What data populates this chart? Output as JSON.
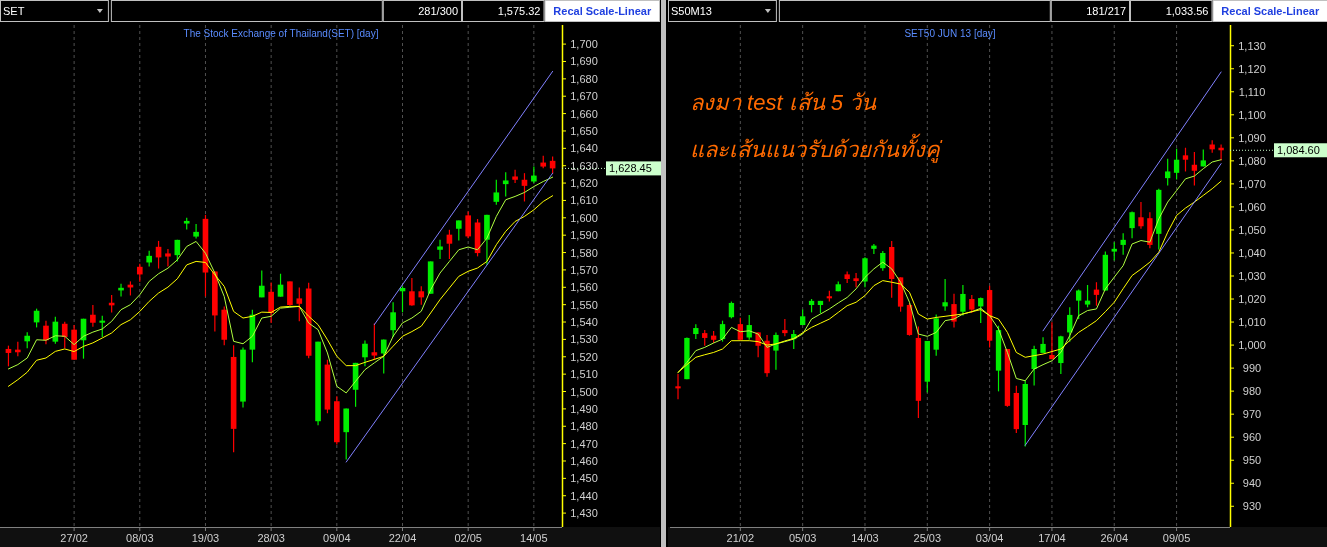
{
  "chart_data": [
    {
      "type": "candlestick",
      "title": "The Stock Exchange of Thailand(SET) [day]",
      "grid": "x",
      "categories": [
        null,
        null,
        null,
        null,
        null,
        null,
        null,
        "27/02",
        null,
        null,
        null,
        null,
        null,
        null,
        "08/03",
        null,
        null,
        null,
        null,
        null,
        null,
        "19/03",
        null,
        null,
        null,
        null,
        null,
        null,
        "28/03",
        null,
        null,
        null,
        null,
        null,
        null,
        "09/04",
        null,
        null,
        null,
        null,
        null,
        null,
        "22/04",
        null,
        null,
        null,
        null,
        null,
        null,
        "02/05",
        null,
        null,
        null,
        null,
        null,
        null,
        "14/05",
        null,
        null
      ],
      "ohlc": [
        [
          1524.5,
          1526.4,
          1514.5,
          1522.2
        ],
        [
          1524.1,
          1528.7,
          1520.3,
          1522.6
        ],
        [
          1528.9,
          1534.1,
          1524.9,
          1532.1
        ],
        [
          1539.8,
          1547.7,
          1536.9,
          1546.5
        ],
        [
          1537.9,
          1540.8,
          1527.2,
          1529.5
        ],
        [
          1528.7,
          1543.1,
          1527.5,
          1540.2
        ],
        [
          1539.0,
          1540.2,
          1524.9,
          1531.4
        ],
        [
          1535.6,
          1538.3,
          1518.3,
          1518.3
        ],
        [
          1529.5,
          1541.9,
          1518.9,
          1541.9
        ],
        [
          1544.2,
          1549.8,
          1537.3,
          1539.6
        ],
        [
          1539.6,
          1543.6,
          1531.4,
          1540.8
        ],
        [
          1551.1,
          1555.5,
          1545.5,
          1549.6
        ],
        [
          1558.2,
          1562.0,
          1554.7,
          1559.7
        ],
        [
          1561.5,
          1563.4,
          1555.3,
          1559.9
        ],
        [
          1571.8,
          1573.5,
          1563.2,
          1567.4
        ],
        [
          1574.3,
          1581.0,
          1572.0,
          1578.1
        ],
        [
          1583.3,
          1586.7,
          1570.8,
          1577.2
        ],
        [
          1579.5,
          1582.1,
          1572.0,
          1577.7
        ],
        [
          1578.5,
          1587.3,
          1574.9,
          1587.3
        ],
        [
          1596.7,
          1600.0,
          1593.3,
          1598.2
        ],
        [
          1589.2,
          1596.5,
          1588.1,
          1591.9
        ],
        [
          1599.4,
          1601.7,
          1554.7,
          1568.5
        ],
        [
          1569.1,
          1569.1,
          1534.6,
          1543.8
        ],
        [
          1547.1,
          1549.0,
          1526.6,
          1529.8
        ],
        [
          1519.9,
          1526.6,
          1465.1,
          1478.5
        ],
        [
          1494.2,
          1525.4,
          1490.8,
          1524.1
        ],
        [
          1524.1,
          1547.1,
          1516.8,
          1544.2
        ],
        [
          1554.2,
          1569.7,
          1554.2,
          1560.9
        ],
        [
          1557.4,
          1562.8,
          1539.4,
          1545.2
        ],
        [
          1554.6,
          1567.8,
          1554.6,
          1561.5
        ],
        [
          1563.4,
          1563.4,
          1549.4,
          1549.8
        ],
        [
          1553.6,
          1559.9,
          1540.4,
          1550.5
        ],
        [
          1559.3,
          1562.6,
          1519.1,
          1520.6
        ],
        [
          1482.9,
          1528.7,
          1480.6,
          1528.7
        ],
        [
          1515.5,
          1518.3,
          1487.5,
          1489.6
        ],
        [
          1494.4,
          1497.3,
          1469.5,
          1470.8
        ],
        [
          1476.6,
          1490.2,
          1460.9,
          1490.2
        ],
        [
          1501.0,
          1516.5,
          1491.2,
          1516.5
        ],
        [
          1519.7,
          1529.3,
          1514.5,
          1527.5
        ],
        [
          1522.6,
          1539.1,
          1518.4,
          1520.7
        ],
        [
          1521.9,
          1529.9,
          1510.4,
          1529.9
        ],
        [
          1535.3,
          1551.4,
          1531.4,
          1545.6
        ],
        [
          1557.7,
          1560.6,
          1545.6,
          1559.6
        ],
        [
          1557.7,
          1565.3,
          1549.4,
          1549.6
        ],
        [
          1557.7,
          1560.6,
          1550.0,
          1554.2
        ],
        [
          1556.3,
          1574.9,
          1556.3,
          1574.9
        ],
        [
          1581.6,
          1587.4,
          1576.3,
          1583.5
        ],
        [
          1590.3,
          1593.1,
          1576.3,
          1585.1
        ],
        [
          1593.7,
          1598.5,
          1587.0,
          1598.5
        ],
        [
          1601.4,
          1603.7,
          1588.3,
          1589.3
        ],
        [
          1597.3,
          1599.3,
          1577.8,
          1579.7
        ],
        [
          1587.4,
          1601.7,
          1573.0,
          1601.7
        ],
        [
          1609.2,
          1621.9,
          1607.5,
          1614.6
        ],
        [
          1619.4,
          1626.3,
          1612.3,
          1621.5
        ],
        [
          1623.8,
          1627.6,
          1620.0,
          1621.9
        ],
        [
          1621.9,
          1625.7,
          1609.4,
          1618.4
        ],
        [
          1620.9,
          1629.5,
          1620.0,
          1624.3
        ],
        [
          1631.8,
          1635.7,
          1628.6,
          1629.5
        ],
        [
          1632.8,
          1635.3,
          1625.3,
          1628.45
        ]
      ],
      "series": [
        {
          "type": "line",
          "color": "#b0ff40",
          "values": [
            1513.0,
            1515.5,
            1519.3,
            1529.8,
            1529.5,
            1532.1,
            1531.8,
            1527.0,
            1531.8,
            1534.2,
            1536.0,
            1540.4,
            1547.1,
            1550.0,
            1555.7,
            1563.4,
            1567.8,
            1571.0,
            1575.8,
            1583.5,
            1586.4,
            1579.6,
            1568.2,
            1554.7,
            1528.9,
            1527.5,
            1531.8,
            1542.3,
            1543.3,
            1548.0,
            1548.5,
            1549.0,
            1539.4,
            1535.6,
            1522.2,
            1503.0,
            1499.2,
            1505.9,
            1512.6,
            1516.5,
            1520.3,
            1531.8,
            1539.5,
            1542.3,
            1546.2,
            1558.6,
            1568.2,
            1574.9,
            1581.6,
            1583.2,
            1581.6,
            1588.3,
            1600.8,
            1610.4,
            1612.3,
            1614.6,
            1618.0,
            1620.9,
            1623.4
          ]
        },
        {
          "type": "line",
          "color": "#ffff00",
          "values": [
            1503.0,
            1506.8,
            1511.1,
            1518.0,
            1519.3,
            1523.1,
            1524.5,
            1523.0,
            1526.0,
            1528.0,
            1530.8,
            1533.7,
            1538.5,
            1541.3,
            1546.1,
            1551.9,
            1556.7,
            1560.1,
            1564.9,
            1572.9,
            1574.9,
            1574.3,
            1567.2,
            1560.5,
            1546.1,
            1542.3,
            1543.3,
            1545.7,
            1545.5,
            1548.6,
            1549.0,
            1549.0,
            1543.3,
            1538.5,
            1529.8,
            1520.3,
            1514.9,
            1514.9,
            1516.8,
            1518.5,
            1520.3,
            1526.1,
            1531.8,
            1534.5,
            1537.6,
            1545.2,
            1552.9,
            1559.6,
            1566.3,
            1569.2,
            1571.1,
            1574.9,
            1584.5,
            1592.2,
            1597.9,
            1600.8,
            1604.6,
            1609.4,
            1612.7
          ]
        },
        {
          "type": "line",
          "color": "#8080ff",
          "values": [
            null,
            null,
            null,
            null,
            null,
            null,
            null,
            null,
            null,
            null,
            null,
            null,
            null,
            null,
            null,
            null,
            null,
            null,
            null,
            null,
            null,
            null,
            null,
            null,
            null,
            null,
            null,
            null,
            null,
            null,
            null,
            null,
            null,
            null,
            null,
            null,
            1459.4,
            null,
            null,
            null,
            null,
            null,
            null,
            null,
            null,
            null,
            null,
            null,
            null,
            null,
            null,
            null,
            null,
            null,
            null,
            null,
            null,
            null,
            1625.7
          ]
        },
        {
          "type": "line",
          "color": "#8080ff",
          "values": [
            null,
            null,
            null,
            null,
            null,
            null,
            null,
            null,
            null,
            null,
            null,
            null,
            null,
            null,
            null,
            null,
            null,
            null,
            null,
            null,
            null,
            null,
            null,
            null,
            null,
            null,
            null,
            null,
            null,
            null,
            null,
            null,
            null,
            null,
            null,
            null,
            null,
            null,
            null,
            1538.5,
            null,
            null,
            null,
            null,
            null,
            null,
            null,
            null,
            null,
            null,
            null,
            null,
            null,
            null,
            null,
            null,
            null,
            null,
            1684.3
          ]
        }
      ],
      "ylim": [
        1422,
        1711
      ],
      "yticks": [
        {
          "value": 1430,
          "label": "1,430"
        },
        {
          "value": 1440,
          "label": "1,440"
        },
        {
          "value": 1450,
          "label": "1,450"
        },
        {
          "value": 1460,
          "label": "1,460"
        },
        {
          "value": 1470,
          "label": "1,470"
        },
        {
          "value": 1480,
          "label": "1,480"
        },
        {
          "value": 1490,
          "label": "1,490"
        },
        {
          "value": 1500,
          "label": "1,500"
        },
        {
          "value": 1510,
          "label": "1,510"
        },
        {
          "value": 1520,
          "label": "1,520"
        },
        {
          "value": 1530,
          "label": "1,530"
        },
        {
          "value": 1540,
          "label": "1,540"
        },
        {
          "value": 1550,
          "label": "1,550"
        },
        {
          "value": 1560,
          "label": "1,560"
        },
        {
          "value": 1570,
          "label": "1,570"
        },
        {
          "value": 1580,
          "label": "1,580"
        },
        {
          "value": 1590,
          "label": "1,590"
        },
        {
          "value": 1600,
          "label": "1,600"
        },
        {
          "value": 1610,
          "label": "1,610"
        },
        {
          "value": 1620,
          "label": "1,620"
        },
        {
          "value": 1630,
          "label": "1,630"
        },
        {
          "value": 1640,
          "label": "1,640"
        },
        {
          "value": 1650,
          "label": "1,650"
        },
        {
          "value": 1660,
          "label": "1,660"
        },
        {
          "value": 1670,
          "label": "1,670"
        },
        {
          "value": 1680,
          "label": "1,680"
        },
        {
          "value": 1690,
          "label": "1,690"
        },
        {
          "value": 1700,
          "label": "1,700"
        }
      ],
      "annotations": [
        "SET",
        "281/300",
        "1,575.32",
        "Recal Scale-Linear",
        "1,628.45"
      ]
    },
    {
      "type": "candlestick",
      "title": "SET50 JUN 13 [day]",
      "grid": "x",
      "categories": [
        null,
        null,
        null,
        null,
        null,
        null,
        null,
        "21/02",
        null,
        null,
        null,
        null,
        null,
        null,
        "05/03",
        null,
        null,
        null,
        null,
        null,
        null,
        "14/03",
        null,
        null,
        null,
        null,
        null,
        null,
        "25/03",
        null,
        null,
        null,
        null,
        null,
        null,
        "03/04",
        null,
        null,
        null,
        null,
        null,
        null,
        "17/04",
        null,
        null,
        null,
        null,
        null,
        null,
        "26/04",
        null,
        null,
        null,
        null,
        null,
        null,
        "09/05",
        null,
        null,
        null,
        null,
        null
      ],
      "ohlc": [
        [
          982.1,
          987.4,
          976.5,
          981.2
        ],
        [
          985.2,
          1003.3,
          985.2,
          1003.1
        ],
        [
          1004.8,
          1009.1,
          1002.6,
          1007.4
        ],
        [
          1005.2,
          1006.5,
          999.7,
          1003.1
        ],
        [
          1004.1,
          1006.1,
          1000.9,
          1002.3
        ],
        [
          1002.6,
          1010.6,
          1001.5,
          1009.1
        ],
        [
          1012.1,
          1018.9,
          1011.6,
          1018.3
        ],
        [
          1009.1,
          1011.9,
          1001.9,
          1002.3
        ],
        [
          1003.3,
          1013.1,
          1002.3,
          1008.7
        ],
        [
          1005.5,
          1005.5,
          994.7,
          999.7
        ],
        [
          1001.9,
          1004.4,
          986.2,
          987.8
        ],
        [
          997.6,
          1005.5,
          989.3,
          1004.4
        ],
        [
          1006.5,
          1011.3,
          1003.8,
          1005.2
        ],
        [
          1002.6,
          1006.5,
          998.3,
          1004.8
        ],
        [
          1008.7,
          1015.4,
          1008.7,
          1012.5
        ],
        [
          1017.4,
          1020.0,
          1014.2,
          1019.2
        ],
        [
          1017.4,
          1019.2,
          1013.8,
          1019.2
        ],
        [
          1021.2,
          1023.6,
          1018.9,
          1020.3
        ],
        [
          1023.4,
          1027.6,
          1023.4,
          1026.4
        ],
        [
          1030.7,
          1031.9,
          1027.0,
          1028.7
        ],
        [
          1029.0,
          1031.3,
          1025.1,
          1027.8
        ],
        [
          1027.6,
          1038.1,
          1025.1,
          1037.7
        ],
        [
          1041.8,
          1043.9,
          1039.6,
          1043.2
        ],
        [
          1033.4,
          1040.9,
          1032.3,
          1040.0
        ],
        [
          1042.6,
          1045.2,
          1020.6,
          1028.7
        ],
        [
          1029.4,
          1029.4,
          1014.5,
          1016.7
        ],
        [
          1017.4,
          1018.3,
          1004.1,
          1004.4
        ],
        [
          1003.1,
          1008.1,
          968.3,
          975.8
        ],
        [
          984.1,
          1001.8,
          979.4,
          1001.8
        ],
        [
          998.0,
          1013.3,
          995.4,
          1011.6
        ],
        [
          1016.8,
          1028.7,
          1014.9,
          1018.6
        ],
        [
          1017.8,
          1022.3,
          1007.6,
          1010.2
        ],
        [
          1014.5,
          1026.1,
          1012.8,
          1022.2
        ],
        [
          1020.0,
          1021.8,
          1013.9,
          1015.4
        ],
        [
          1016.8,
          1020.7,
          1009.6,
          1020.4
        ],
        [
          1023.9,
          1025.8,
          999.0,
          1001.9
        ],
        [
          988.9,
          1008.4,
          979.9,
          1006.5
        ],
        [
          998.3,
          998.3,
          973.2,
          973.6
        ],
        [
          979.2,
          982.3,
          961.8,
          963.5
        ],
        [
          965.3,
          984.5,
          956.0,
          983.1
        ],
        [
          989.6,
          999.7,
          982.4,
          998.3
        ],
        [
          996.6,
          1003.4,
          996.6,
          1000.5
        ],
        [
          995.7,
          1009.9,
          993.9,
          993.9
        ],
        [
          992.2,
          1004.1,
          987.4,
          1003.8
        ],
        [
          1005.5,
          1016.4,
          1001.5,
          1013.1
        ],
        [
          1019.3,
          1024.1,
          1011.3,
          1023.7
        ],
        [
          1017.6,
          1026.1,
          1016.4,
          1019.3
        ],
        [
          1024.1,
          1027.3,
          1017.1,
          1021.8
        ],
        [
          1023.7,
          1040.6,
          1023.7,
          1039.2
        ],
        [
          1040.6,
          1044.7,
          1036.7,
          1041.8
        ],
        [
          1043.5,
          1048.6,
          1039.2,
          1045.7
        ],
        [
          1050.8,
          1058.0,
          1046.4,
          1057.7
        ],
        [
          1055.5,
          1062.1,
          1050.5,
          1051.6
        ],
        [
          1055.1,
          1057.7,
          1042.1,
          1043.5
        ],
        [
          1048.3,
          1067.9,
          1041.5,
          1067.4
        ],
        [
          1072.5,
          1080.9,
          1069.3,
          1075.4
        ],
        [
          1074.8,
          1085.3,
          1071.9,
          1080.5
        ],
        [
          1082.4,
          1085.7,
          1075.4,
          1080.5
        ],
        [
          1078.3,
          1083.8,
          1069.3,
          1075.7
        ],
        [
          1077.6,
          1084.9,
          1077.6,
          1080.2
        ],
        [
          1087.1,
          1088.9,
          1083.5,
          1085.0
        ],
        [
          1085.7,
          1087.1,
          1080.2,
          1084.6
        ]
      ],
      "series": [
        {
          "type": "line",
          "color": "#b0ff40",
          "values": [
            988.1,
            992.5,
            997.6,
            999.0,
            1000.9,
            1002.6,
            1007.7,
            1005.8,
            1006.2,
            1004.8,
            999.0,
            1000.5,
            1001.5,
            1002.6,
            1004.8,
            1011.3,
            1013.5,
            1015.7,
            1018.3,
            1020.7,
            1024.4,
            1029.4,
            1033.1,
            1036.0,
            1033.1,
            1027.3,
            1018.6,
            1004.8,
            1003.8,
            1005.5,
            1010.6,
            1011.3,
            1013.5,
            1014.5,
            1016.0,
            1012.8,
            1007.0,
            996.8,
            985.5,
            984.5,
            989.6,
            991.5,
            993.2,
            996.8,
            1004.1,
            1012.8,
            1015.0,
            1015.7,
            1024.4,
            1029.5,
            1034.5,
            1043.9,
            1045.4,
            1044.7,
            1054.8,
            1062.1,
            1067.1,
            1072.2,
            1073.4,
            1076.6,
            1079.5,
            1080.5
          ]
        },
        {
          "type": "line",
          "color": "#ffff00",
          "values": [
            988.1,
            991.5,
            994.7,
            995.8,
            996.8,
            998.3,
            1001.9,
            1001.9,
            1001.9,
            1001.5,
            1000.0,
            1000.5,
            1001.8,
            1002.9,
            1005.3,
            1007.7,
            1009.5,
            1011.3,
            1014.2,
            1017.1,
            1018.6,
            1021.5,
            1025.8,
            1028.0,
            1027.3,
            1026.5,
            1022.9,
            1013.5,
            1011.3,
            1012.0,
            1012.5,
            1013.0,
            1013.5,
            1014.5,
            1015.4,
            1012.8,
            1011.3,
            1005.5,
            996.8,
            994.7,
            995.4,
            996.1,
            997.2,
            998.3,
            1002.0,
            1005.5,
            1008.0,
            1010.6,
            1014.5,
            1018.6,
            1024.5,
            1030.2,
            1033.0,
            1036.0,
            1040.3,
            1049.0,
            1056.3,
            1059.5,
            1062.1,
            1065.0,
            1067.9,
            1071.2
          ]
        },
        {
          "type": "line",
          "color": "#8080ff",
          "values": [
            null,
            null,
            null,
            null,
            null,
            null,
            null,
            null,
            null,
            null,
            null,
            null,
            null,
            null,
            null,
            null,
            null,
            null,
            null,
            null,
            null,
            null,
            null,
            null,
            null,
            null,
            null,
            null,
            null,
            null,
            null,
            null,
            null,
            null,
            null,
            null,
            null,
            null,
            null,
            956.5,
            null,
            null,
            null,
            null,
            null,
            null,
            null,
            null,
            null,
            null,
            null,
            null,
            null,
            null,
            null,
            null,
            null,
            null,
            null,
            null,
            null,
            1078.8
          ]
        },
        {
          "type": "line",
          "color": "#8080ff",
          "values": [
            null,
            null,
            null,
            null,
            null,
            null,
            null,
            null,
            null,
            null,
            null,
            null,
            null,
            null,
            null,
            null,
            null,
            null,
            null,
            null,
            null,
            null,
            null,
            null,
            null,
            null,
            null,
            null,
            null,
            null,
            null,
            null,
            null,
            null,
            null,
            null,
            null,
            null,
            null,
            null,
            null,
            1006.2,
            null,
            null,
            null,
            null,
            null,
            null,
            null,
            null,
            null,
            null,
            null,
            null,
            null,
            null,
            null,
            null,
            null,
            null,
            null,
            1118.6
          ]
        }
      ],
      "ylim": [
        921,
        1139
      ],
      "yticks": [
        {
          "value": 930,
          "label": "930"
        },
        {
          "value": 940,
          "label": "940"
        },
        {
          "value": 950,
          "label": "950"
        },
        {
          "value": 960,
          "label": "960"
        },
        {
          "value": 970,
          "label": "970"
        },
        {
          "value": 980,
          "label": "980"
        },
        {
          "value": 990,
          "label": "990"
        },
        {
          "value": 1000,
          "label": "1,000"
        },
        {
          "value": 1010,
          "label": "1,010"
        },
        {
          "value": 1020,
          "label": "1,020"
        },
        {
          "value": 1030,
          "label": "1,030"
        },
        {
          "value": 1040,
          "label": "1,040"
        },
        {
          "value": 1050,
          "label": "1,050"
        },
        {
          "value": 1060,
          "label": "1,060"
        },
        {
          "value": 1070,
          "label": "1,070"
        },
        {
          "value": 1080,
          "label": "1,080"
        },
        {
          "value": 1090,
          "label": "1,090"
        },
        {
          "value": 1100,
          "label": "1,100"
        },
        {
          "value": 1110,
          "label": "1,110"
        },
        {
          "value": 1120,
          "label": "1,120"
        },
        {
          "value": 1130,
          "label": "1,130"
        }
      ],
      "annotations": [
        "S50M13",
        "181/217",
        "1,033.56",
        "Recal Scale-Linear",
        "1,084.60",
        "ลงมา test เส้น 5 วัน",
        "และเส้นแนวรับด้วยกันทั้งคู่"
      ]
    }
  ]
}
